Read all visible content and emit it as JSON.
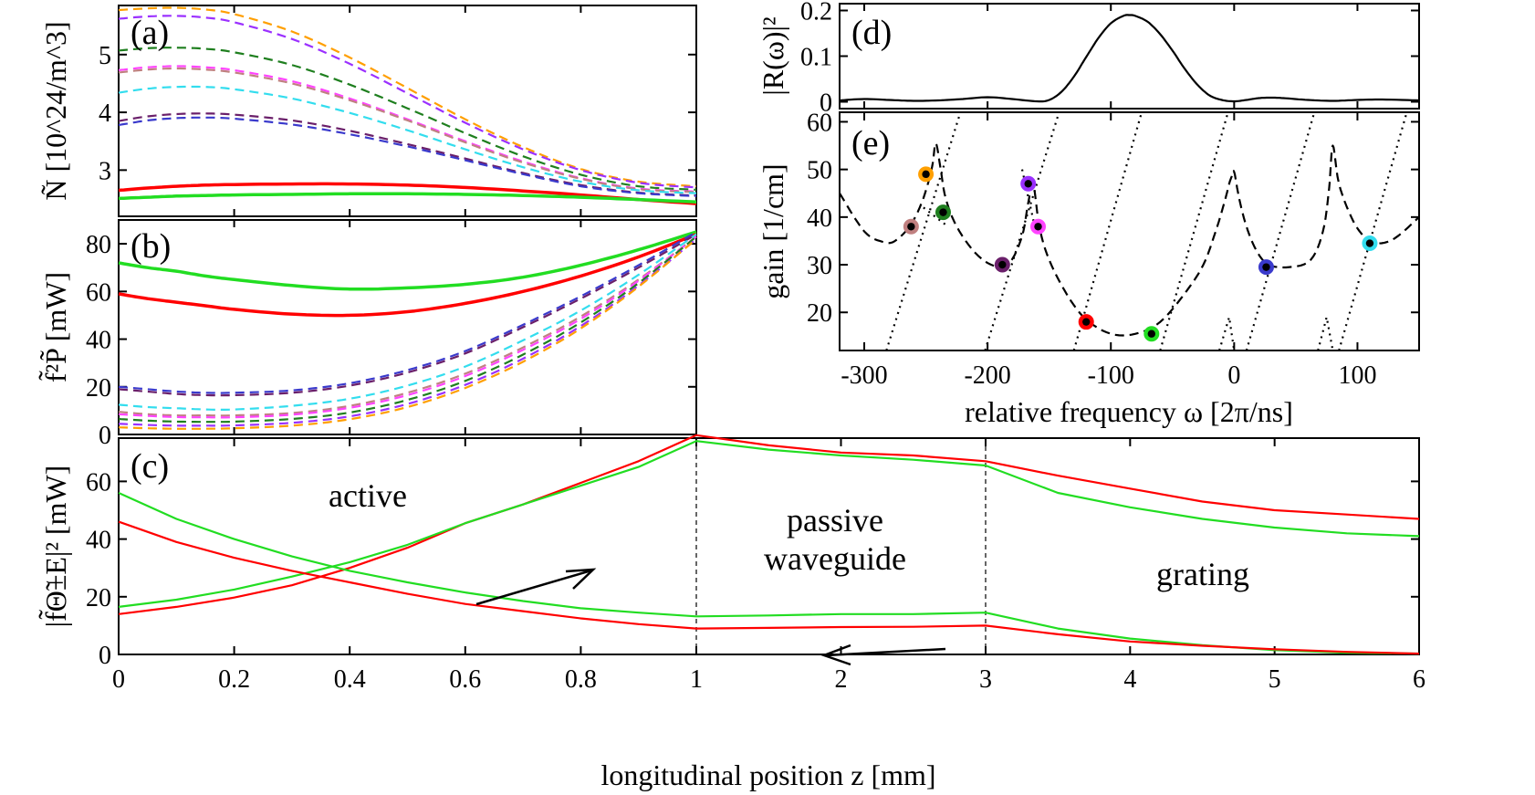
{
  "chart_data": [
    {
      "id": "a",
      "type": "line",
      "panel_label": "(a)",
      "ylabel": "Ñ  [10^24/m^3]",
      "xlim": [
        0,
        1
      ],
      "ylim": [
        2.2,
        5.85
      ],
      "yticks": [
        3,
        4,
        5
      ],
      "ytick_labels": [
        "3",
        "4",
        "5"
      ],
      "x": [
        0,
        0.05,
        0.1,
        0.15,
        0.2,
        0.3,
        0.4,
        0.5,
        0.6,
        0.7,
        0.8,
        0.9,
        1.0
      ],
      "series": [
        {
          "color": "#ff9f00",
          "dash": true,
          "values": [
            5.77,
            5.8,
            5.81,
            5.78,
            5.7,
            5.4,
            4.95,
            4.42,
            3.88,
            3.4,
            3.02,
            2.8,
            2.72
          ]
        },
        {
          "color": "#9b30ff",
          "dash": true,
          "values": [
            5.62,
            5.66,
            5.67,
            5.64,
            5.56,
            5.27,
            4.84,
            4.33,
            3.82,
            3.36,
            3.0,
            2.78,
            2.7
          ]
        },
        {
          "color": "#1f7f1f",
          "dash": true,
          "values": [
            5.07,
            5.11,
            5.12,
            5.1,
            5.04,
            4.82,
            4.48,
            4.07,
            3.64,
            3.24,
            2.92,
            2.72,
            2.66
          ]
        },
        {
          "color": "#ff44ff",
          "dash": true,
          "values": [
            4.73,
            4.78,
            4.8,
            4.78,
            4.73,
            4.54,
            4.24,
            3.88,
            3.5,
            3.15,
            2.86,
            2.68,
            2.63
          ]
        },
        {
          "color": "#c08080",
          "dash": true,
          "values": [
            4.69,
            4.74,
            4.76,
            4.74,
            4.69,
            4.5,
            4.21,
            3.86,
            3.48,
            3.13,
            2.85,
            2.67,
            2.62
          ]
        },
        {
          "color": "#33ddee",
          "dash": true,
          "values": [
            4.34,
            4.41,
            4.44,
            4.44,
            4.4,
            4.24,
            3.99,
            3.69,
            3.36,
            3.05,
            2.8,
            2.65,
            2.6
          ]
        },
        {
          "color": "#6a1f6a",
          "dash": true,
          "values": [
            3.85,
            3.93,
            3.97,
            3.98,
            3.96,
            3.86,
            3.68,
            3.45,
            3.2,
            2.95,
            2.74,
            2.61,
            2.56
          ]
        },
        {
          "color": "#3a3acc",
          "dash": true,
          "values": [
            3.78,
            3.86,
            3.9,
            3.91,
            3.89,
            3.79,
            3.62,
            3.41,
            3.17,
            2.93,
            2.72,
            2.6,
            2.55
          ]
        },
        {
          "color": "#ff0000",
          "dash": false,
          "values": [
            2.65,
            2.69,
            2.72,
            2.74,
            2.75,
            2.76,
            2.76,
            2.74,
            2.7,
            2.64,
            2.57,
            2.49,
            2.42
          ]
        },
        {
          "color": "#22dd22",
          "dash": false,
          "values": [
            2.51,
            2.53,
            2.55,
            2.56,
            2.57,
            2.58,
            2.59,
            2.59,
            2.58,
            2.56,
            2.53,
            2.49,
            2.45
          ]
        }
      ]
    },
    {
      "id": "b",
      "type": "line",
      "panel_label": "(b)",
      "ylabel": "f̃²P̃  [mW]",
      "xlim": [
        0,
        1
      ],
      "ylim": [
        0,
        90
      ],
      "yticks": [
        0,
        20,
        40,
        60,
        80
      ],
      "ytick_labels": [
        "0",
        "20",
        "40",
        "60",
        "80"
      ],
      "x": [
        0,
        0.05,
        0.1,
        0.15,
        0.2,
        0.3,
        0.4,
        0.5,
        0.6,
        0.7,
        0.8,
        0.9,
        1.0
      ],
      "series": [
        {
          "color": "#22dd22",
          "dash": false,
          "values": [
            72,
            70,
            68.5,
            66.5,
            65,
            62.5,
            61,
            61.5,
            63,
            66,
            71,
            77.5,
            85
          ]
        },
        {
          "color": "#ff0000",
          "dash": false,
          "values": [
            59,
            57,
            55.5,
            54,
            52.5,
            50.5,
            50,
            51.5,
            55,
            60,
            66.5,
            74.5,
            84
          ]
        },
        {
          "color": "#3a3acc",
          "dash": true,
          "values": [
            20,
            19,
            18,
            17.5,
            17.5,
            18.5,
            21.5,
            27,
            35,
            46,
            58,
            71,
            85
          ]
        },
        {
          "color": "#6a1f6a",
          "dash": true,
          "values": [
            19,
            18,
            17,
            16.5,
            16.5,
            17.5,
            20.5,
            26,
            34,
            45,
            57,
            70,
            84
          ]
        },
        {
          "color": "#33ddee",
          "dash": true,
          "values": [
            12.5,
            11.5,
            11,
            10.5,
            10.5,
            12,
            15,
            20.5,
            28.5,
            39.5,
            52,
            67,
            84
          ]
        },
        {
          "color": "#c08080",
          "dash": true,
          "values": [
            9.5,
            8.5,
            8,
            8,
            8,
            9,
            12,
            17.5,
            25.5,
            36.5,
            49.5,
            65,
            83
          ]
        },
        {
          "color": "#ff44ff",
          "dash": true,
          "values": [
            8.5,
            7.8,
            7.3,
            7.2,
            7.2,
            8.3,
            11.2,
            16.5,
            24.5,
            35.5,
            48.5,
            64.5,
            83
          ]
        },
        {
          "color": "#1f7f1f",
          "dash": true,
          "values": [
            6.5,
            5.8,
            5.4,
            5.3,
            5.4,
            6.5,
            9.2,
            14.5,
            22.5,
            33.5,
            47,
            63.5,
            83
          ]
        },
        {
          "color": "#9b30ff",
          "dash": true,
          "values": [
            4.5,
            4,
            3.7,
            3.7,
            3.8,
            4.9,
            7.6,
            12.8,
            20.8,
            31.8,
            45.5,
            62.5,
            82
          ]
        },
        {
          "color": "#ff9f00",
          "dash": true,
          "values": [
            3,
            2.6,
            2.4,
            2.4,
            2.6,
            3.7,
            6.4,
            11.5,
            19.5,
            30.5,
            44.5,
            62,
            82
          ]
        }
      ]
    },
    {
      "id": "c",
      "type": "line",
      "panel_label": "(c)",
      "xlabel": "longitudinal position  z   [mm]",
      "ylabel": "|f̃Θ̃±E|²  [mW]",
      "xlim": [
        0,
        6
      ],
      "ylim": [
        0,
        75
      ],
      "xticks": [
        0,
        0.2,
        0.4,
        0.6,
        0.8,
        1,
        2,
        3,
        4,
        5,
        6
      ],
      "xtick_labels": [
        "0",
        "0.2",
        "0.4",
        "0.6",
        "0.8",
        "1",
        "2",
        "3",
        "4",
        "5",
        "6"
      ],
      "yticks": [
        0,
        20,
        40,
        60
      ],
      "ytick_labels": [
        "0",
        "20",
        "40",
        "60"
      ],
      "x_scale_note": "piecewise: 0-1 mm stretched, 1-6 mm compressed",
      "section_boundaries": [
        1,
        3
      ],
      "regions": [
        "active",
        "passive waveguide",
        "grating"
      ],
      "x": [
        0,
        0.1,
        0.2,
        0.3,
        0.4,
        0.5,
        0.6,
        0.7,
        0.8,
        0.9,
        1.0,
        1.5,
        2,
        2.5,
        3,
        3.5,
        4,
        4.5,
        5,
        5.5,
        6
      ],
      "series": [
        {
          "name": "forward",
          "color": "#ff0000",
          "values": [
            14,
            16.5,
            19.7,
            24,
            30,
            37,
            45.5,
            52,
            59.5,
            67,
            76,
            72.5,
            70,
            69,
            67,
            62,
            57.5,
            53,
            50,
            48.5,
            47
          ]
        },
        {
          "name": "forward",
          "color": "#22dd22",
          "values": [
            16.5,
            19,
            22.5,
            27,
            32,
            38,
            45.5,
            52,
            58.5,
            65,
            74,
            71,
            69,
            67.5,
            65.5,
            56,
            51,
            47,
            44,
            42,
            41
          ]
        },
        {
          "name": "backward",
          "color": "#22dd22",
          "values": [
            56,
            47,
            40,
            34,
            29,
            25,
            21.5,
            18.5,
            16,
            14.5,
            13.2,
            13.5,
            14,
            14,
            14.5,
            9,
            5.5,
            3.2,
            1.5,
            0.6,
            0.3
          ]
        },
        {
          "name": "backward",
          "color": "#ff0000",
          "values": [
            46,
            39,
            33.5,
            29,
            25,
            21,
            17.5,
            15,
            12.5,
            10.5,
            9,
            9.2,
            9.5,
            9.6,
            10,
            7,
            4.5,
            3,
            1.8,
            0.9,
            0.3
          ]
        }
      ],
      "annotations": [
        "active",
        "passive",
        "waveguide",
        "grating"
      ]
    },
    {
      "id": "d",
      "type": "line",
      "panel_label": "(d)",
      "ylabel": "|R(ω)|²",
      "xlim": [
        -320,
        150
      ],
      "ylim": [
        -0.015,
        0.215
      ],
      "yticks": [
        0,
        0.1,
        0.2
      ],
      "ytick_labels": [
        "0",
        "0.1",
        "0.2"
      ],
      "x": [
        -320,
        -300,
        -280,
        -260,
        -240,
        -220,
        -200,
        -180,
        -160,
        -150,
        -140,
        -130,
        -120,
        -110,
        -100,
        -90,
        -85,
        -80,
        -70,
        -60,
        -50,
        -40,
        -30,
        -20,
        -10,
        0,
        10,
        20,
        30,
        40,
        60,
        80,
        100,
        120,
        150
      ],
      "series": [
        {
          "color": "#000000",
          "values": [
            0.003,
            0.006,
            0.004,
            0.002,
            0.003,
            0.006,
            0.01,
            0.006,
            0.001,
            0.004,
            0.022,
            0.055,
            0.098,
            0.14,
            0.172,
            0.188,
            0.19,
            0.188,
            0.175,
            0.148,
            0.112,
            0.072,
            0.038,
            0.014,
            0.004,
            0.001,
            0.004,
            0.008,
            0.009,
            0.008,
            0.004,
            0.002,
            0.004,
            0.005,
            0.003
          ]
        }
      ]
    },
    {
      "id": "e",
      "type": "line",
      "panel_label": "(e)",
      "xlabel": "relative frequency  ω    [2π/ns]",
      "ylabel": "gain  [1/cm]",
      "xlim": [
        -320,
        150
      ],
      "ylim": [
        12,
        62
      ],
      "xticks": [
        -300,
        -200,
        -100,
        0,
        100
      ],
      "xtick_labels": [
        "-300",
        "-200",
        "-100",
        "0",
        "100"
      ],
      "yticks": [
        20,
        30,
        40,
        50,
        60
      ],
      "ytick_labels": [
        "20",
        "30",
        "40",
        "50",
        "60"
      ],
      "threshold_curve_x": [
        -320,
        -300,
        -285,
        -275,
        -262,
        -252,
        -245,
        -242,
        -238,
        -234,
        -225,
        -210,
        -195,
        -182,
        -172,
        -167,
        -163,
        -158,
        -150,
        -135,
        -120,
        -100,
        -80,
        -60,
        -40,
        -25,
        -15,
        -8,
        -4,
        -2,
        0,
        4,
        10,
        18,
        28,
        45,
        62,
        72,
        77,
        80,
        85,
        95,
        105,
        115,
        130,
        150
      ],
      "threshold_curve_y": [
        45,
        37,
        34.8,
        35,
        38.5,
        44,
        50.5,
        55.5,
        50,
        44,
        38,
        32.5,
        29.8,
        30.5,
        36,
        43,
        47,
        38,
        31,
        23.5,
        18.5,
        15.5,
        15.5,
        18,
        24,
        30,
        37,
        43,
        47,
        48.5,
        49.5,
        44,
        38,
        33,
        30,
        29.5,
        31,
        37,
        46,
        55,
        47,
        40,
        36,
        34.5,
        35.5,
        40
      ],
      "dotted_segments": [
        [
          [
            -282,
            12
          ],
          [
            -222,
            62
          ]
        ],
        [
          [
            -202,
            12
          ],
          [
            -142,
            62
          ]
        ],
        [
          [
            -130,
            12
          ],
          [
            -75,
            62
          ]
        ],
        [
          [
            -60,
            12
          ],
          [
            -5,
            62
          ]
        ],
        [
          [
            10,
            12
          ],
          [
            65,
            62
          ]
        ],
        [
          [
            85,
            12
          ],
          [
            140,
            62
          ]
        ],
        [
          [
            -252,
            42
          ],
          [
            -232,
            38
          ]
        ],
        [
          [
            -172,
            50
          ],
          [
            -160,
            36
          ]
        ],
        [
          [
            -12,
            12
          ],
          [
            -4,
            19
          ],
          [
            0,
            12
          ]
        ],
        [
          [
            68,
            12
          ],
          [
            75,
            19
          ],
          [
            80,
            12
          ]
        ]
      ],
      "markers": [
        {
          "x": -262,
          "y": 38,
          "color": "#c08080"
        },
        {
          "x": -250,
          "y": 49,
          "color": "#ff9f00"
        },
        {
          "x": -236,
          "y": 41,
          "color": "#1f7f1f"
        },
        {
          "x": -188,
          "y": 30,
          "color": "#6a1f6a"
        },
        {
          "x": -167,
          "y": 47,
          "color": "#9b30ff"
        },
        {
          "x": -159,
          "y": 38,
          "color": "#ff44ff"
        },
        {
          "x": -120,
          "y": 18,
          "color": "#ff0000"
        },
        {
          "x": -67,
          "y": 15.5,
          "color": "#22dd22"
        },
        {
          "x": 26,
          "y": 29.5,
          "color": "#3a3acc"
        },
        {
          "x": 110,
          "y": 34.5,
          "color": "#33ddee"
        }
      ]
    }
  ]
}
